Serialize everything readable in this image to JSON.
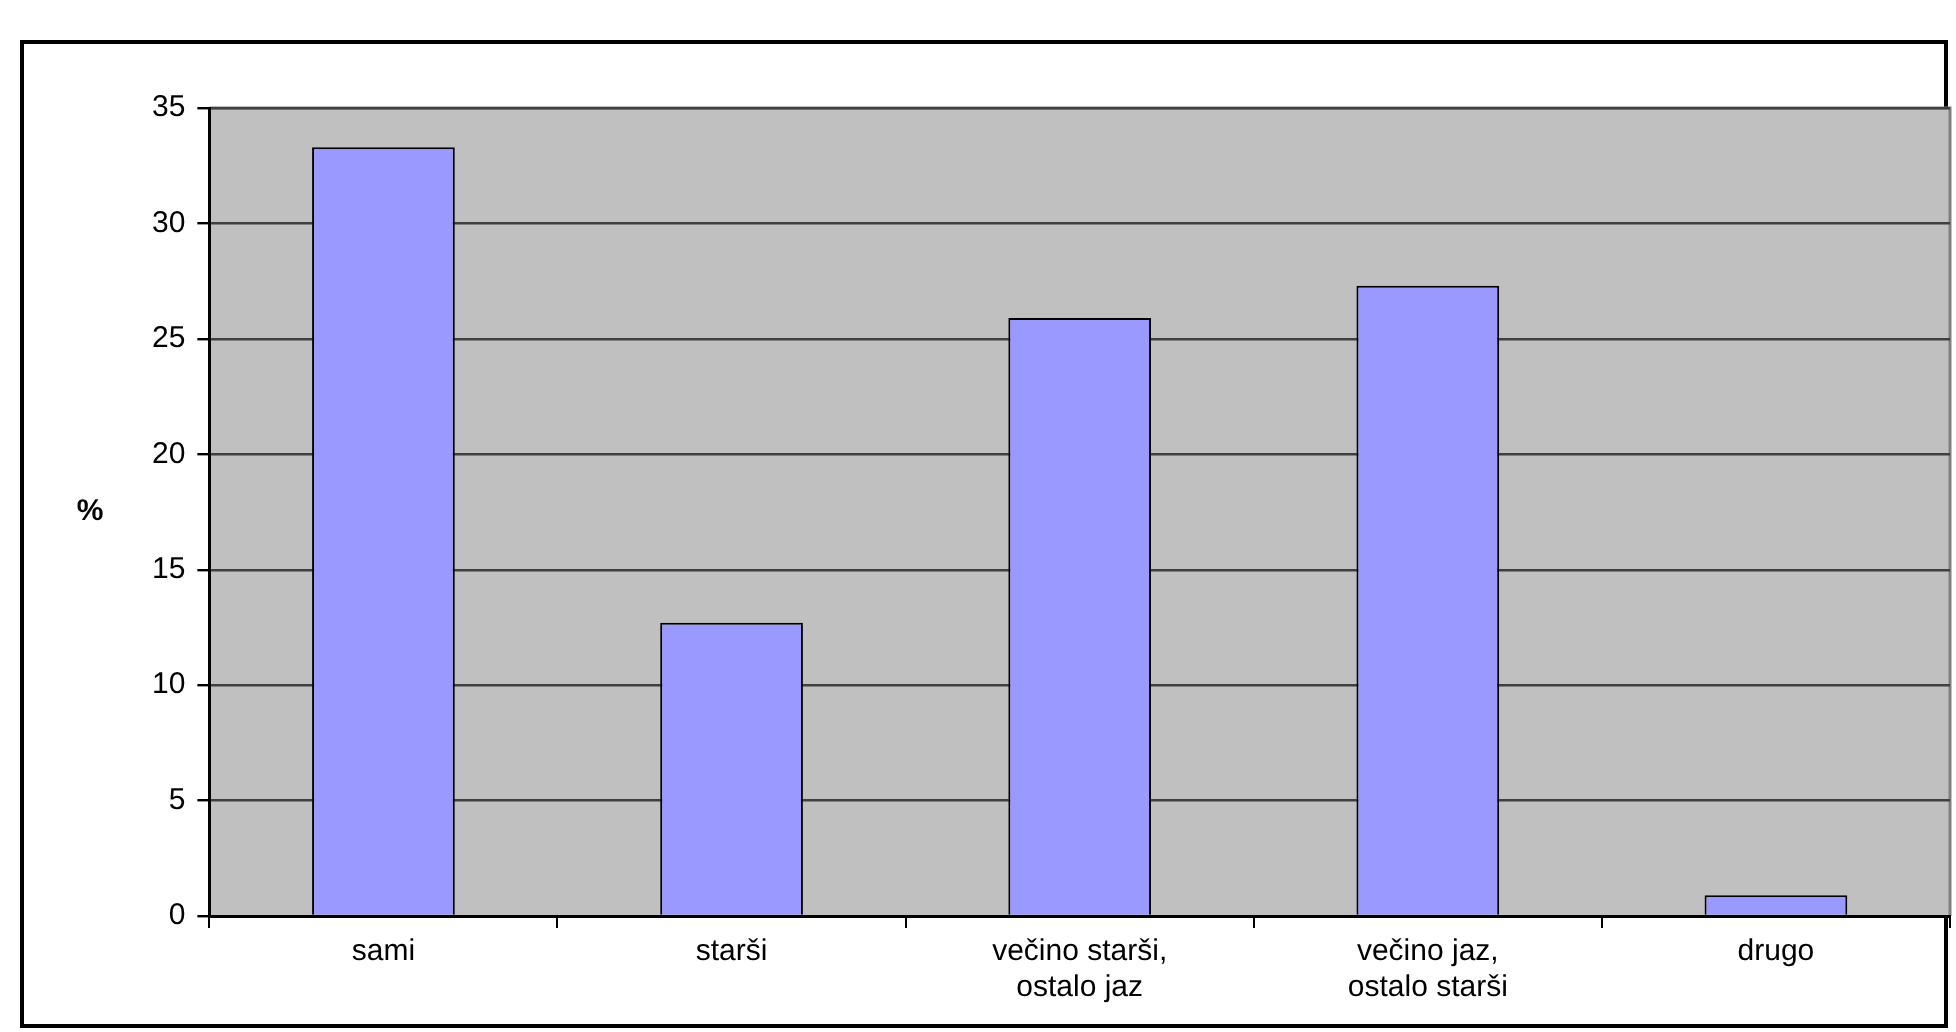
{
  "chart_data": {
    "type": "bar",
    "ylabel": "%",
    "categories": [
      "sami",
      "starši",
      "večino starši, ostalo jaz",
      "večino jaz, ostalo starši",
      "drugo"
    ],
    "values": [
      33.3,
      12.7,
      25.9,
      27.3,
      0.9
    ],
    "color": "#9999ff",
    "ylim": [
      0,
      35
    ],
    "yticks": [
      0,
      5,
      10,
      15,
      20,
      25,
      30,
      35
    ],
    "grid": "y",
    "legend": false
  }
}
